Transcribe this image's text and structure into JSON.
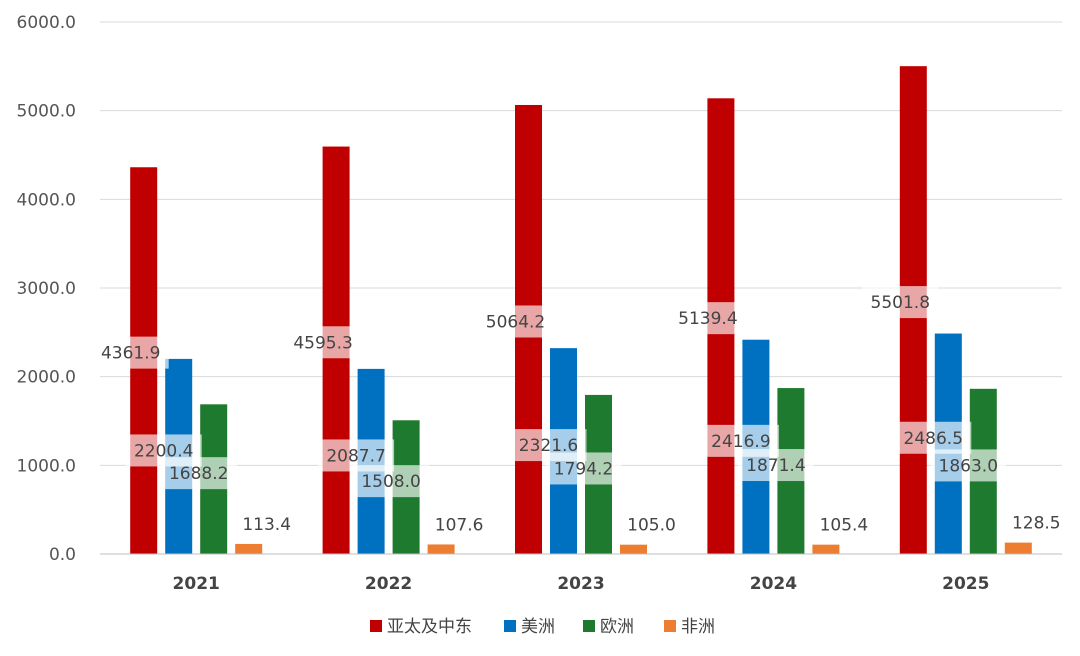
{
  "chart_data": {
    "type": "bar",
    "title": "",
    "xlabel": "",
    "ylabel": "",
    "categories": [
      "2021",
      "2022",
      "2023",
      "2024",
      "2025"
    ],
    "ylim": [
      0,
      6000
    ],
    "yticks": [
      "0.0",
      "1000.0",
      "2000.0",
      "3000.0",
      "4000.0",
      "5000.0",
      "6000.0"
    ],
    "grid": true,
    "legend_position": "bottom",
    "series": [
      {
        "name": "亚太及中东",
        "color": "#c00000",
        "values": [
          4361.9,
          4595.3,
          5064.2,
          5139.4,
          5501.8
        ],
        "labels": [
          "4361.9",
          "4595.3",
          "5064.2",
          "5139.4",
          "5501.8"
        ]
      },
      {
        "name": "美洲",
        "color": "#0070c0",
        "values": [
          2200.4,
          2087.7,
          2321.6,
          2416.9,
          2486.5
        ],
        "labels": [
          "2200.4",
          "2087.7",
          "2321.6",
          "2416.9",
          "2486.5"
        ]
      },
      {
        "name": "欧洲",
        "color": "#1e7a2e",
        "values": [
          1688.2,
          1508.0,
          1794.2,
          1871.4,
          1863.0
        ],
        "labels": [
          "1688.2",
          "1508.0",
          "1794.2",
          "1871.4",
          "1863.0"
        ]
      },
      {
        "name": "非洲",
        "color": "#ed7d31",
        "values": [
          113.4,
          107.6,
          105.0,
          105.4,
          128.5
        ],
        "labels": [
          "113.4",
          "107.6",
          "105.0",
          "105.4",
          "128.5"
        ]
      }
    ]
  }
}
